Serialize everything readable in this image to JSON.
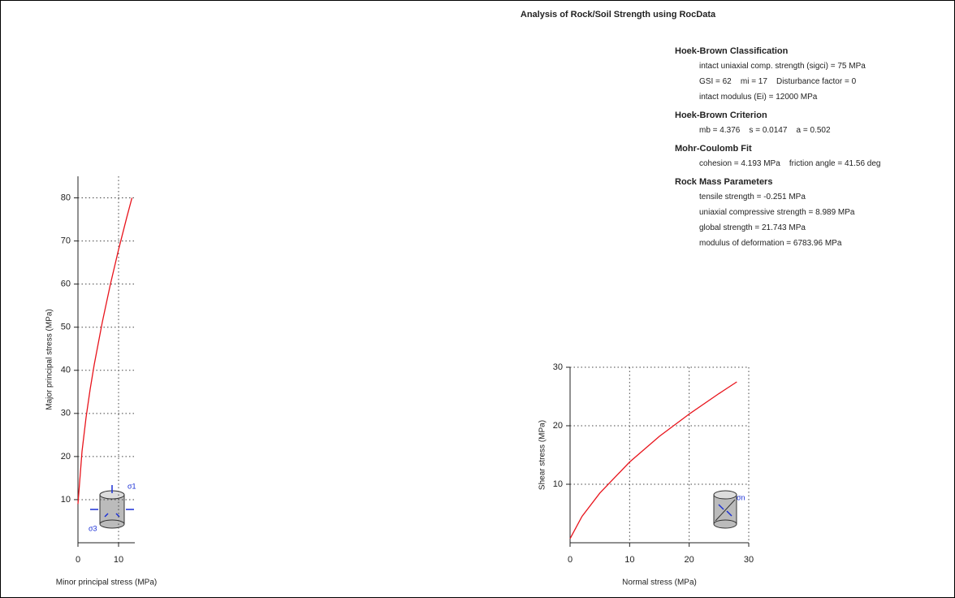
{
  "title": "Analysis of Rock/Soil Strength using RocData",
  "sections": [
    {
      "heading": "Hoek-Brown Classification",
      "lines": [
        "intact uniaxial comp. strength (sigci) = 75 MPa",
        "GSI = 62    mi = 17    Disturbance factor = 0",
        "intact modulus (Ei) = 12000 MPa"
      ]
    },
    {
      "heading": "Hoek-Brown Criterion",
      "lines": [
        "mb = 4.376    s = 0.0147    a = 0.502"
      ]
    },
    {
      "heading": "Mohr-Coulomb Fit",
      "lines": [
        "cohesion = 4.193 MPa    friction angle = 41.56 deg"
      ]
    },
    {
      "heading": "Rock Mass Parameters",
      "lines": [
        "tensile strength = -0.251 MPa",
        "uniaxial compressive strength = 8.989 MPa",
        "global strength = 21.743 MPa",
        "modulus of deformation = 6783.96 MPa"
      ]
    }
  ],
  "chart_data": [
    {
      "type": "line",
      "x_label": "Minor principal stress (MPa)",
      "y_label": "Major principal stress (MPa)",
      "x": [
        0,
        1,
        2,
        3,
        4,
        6,
        8,
        10,
        12,
        13.3
      ],
      "values": [
        9.0,
        21.2,
        29.1,
        35.6,
        41.3,
        51.2,
        60.0,
        68.0,
        75.4,
        80.0
      ],
      "color": "#e8141c",
      "xlim": [
        0,
        14
      ],
      "ylim": [
        0,
        85
      ],
      "xticks": [
        0,
        10
      ],
      "yticks": [
        10,
        20,
        30,
        40,
        50,
        60,
        70,
        80
      ],
      "grid": true,
      "annotations": [
        "σ1",
        "σ3"
      ]
    },
    {
      "type": "line",
      "x_label": "Normal stress (MPa)",
      "y_label": "Shear stress (MPa)",
      "x": [
        0,
        2,
        5,
        10,
        15,
        20,
        25,
        28
      ],
      "values": [
        0.7,
        4.5,
        8.5,
        13.8,
        18.2,
        22.0,
        25.5,
        27.5
      ],
      "color": "#e8141c",
      "xlim": [
        0,
        30
      ],
      "ylim": [
        0,
        30
      ],
      "xticks": [
        0,
        10,
        20,
        30
      ],
      "yticks": [
        10,
        20,
        30
      ],
      "grid": true,
      "annotations": [
        "σn"
      ]
    }
  ]
}
